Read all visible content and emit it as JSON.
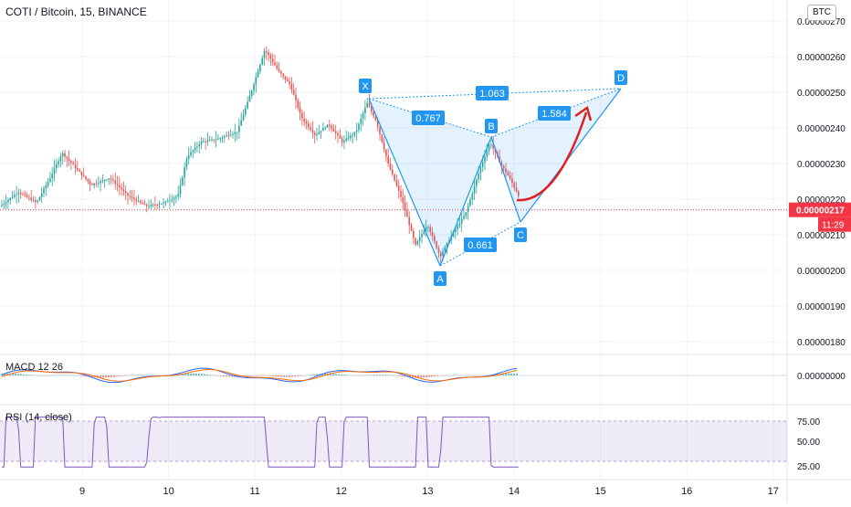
{
  "header": {
    "symbol_title": "COTI / Bitcoin, 15, BINANCE",
    "currency_button": "BTC"
  },
  "indicators": {
    "macd_label": "MACD 12 26",
    "rsi_label": "RSI (14, close)"
  },
  "price_axis": {
    "ticks": [
      "0.00000270",
      "0.00000260",
      "0.00000250",
      "0.00000240",
      "0.00000230",
      "0.00000220",
      "0.00000210",
      "0.00000200",
      "0.00000190",
      "0.00000180"
    ],
    "current_price": "0.00000217",
    "countdown": "11:29",
    "macd_tick": "0.00000000",
    "rsi_ticks": [
      "75.00",
      "50.00",
      "25.00"
    ]
  },
  "time_axis": {
    "ticks": [
      "9",
      "10",
      "11",
      "12",
      "13",
      "14",
      "15",
      "16",
      "17"
    ]
  },
  "pattern": {
    "points": [
      "X",
      "A",
      "B",
      "C",
      "D"
    ],
    "ratios": {
      "xb": "0.767",
      "ac": "0.661",
      "bd": "1.584",
      "xd": "1.063"
    }
  },
  "colors": {
    "up": "#26a69a",
    "down": "#ef5350",
    "pattern": "#2196f3",
    "macd": "#2962ff",
    "signal": "#ff6d00",
    "rsi": "#7e57c2",
    "price_line": "#f23645"
  },
  "chart_data": {
    "type": "candlestick",
    "price_range": [
      1.76e-06,
      2.74e-06
    ],
    "pattern_prices": {
      "X": 2.48e-06,
      "A": 2.01e-06,
      "B": 2.38e-06,
      "C": 2.14e-06,
      "D": 2.51e-06
    },
    "rsi_levels": [
      70,
      30
    ]
  }
}
